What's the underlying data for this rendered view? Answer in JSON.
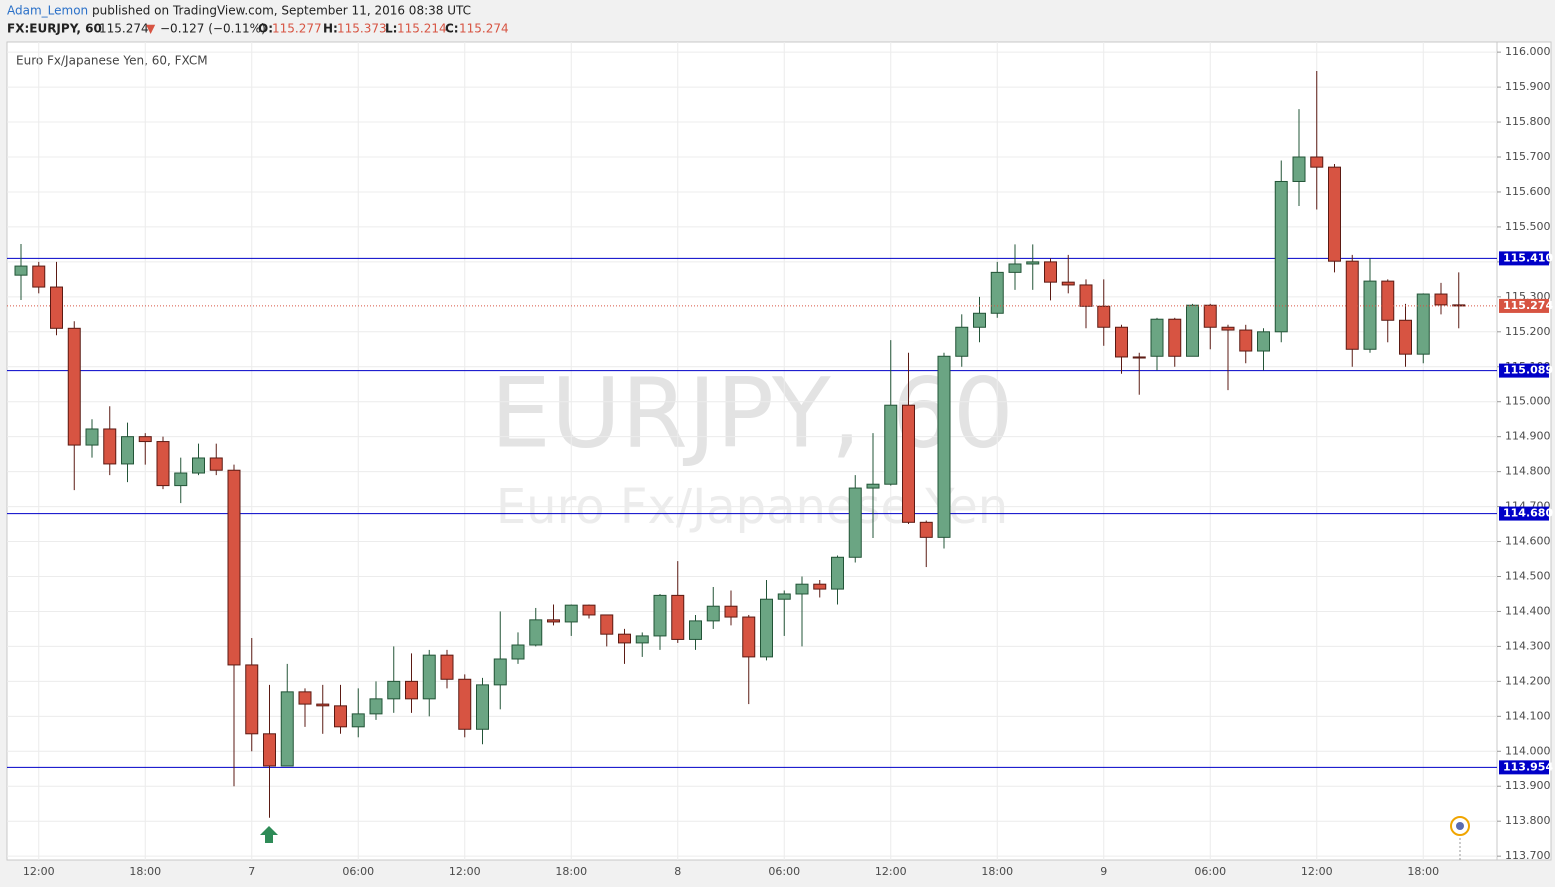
{
  "header": {
    "author": "Adam_Lemon",
    "published": "published on TradingView.com, September 11, 2016 08:38 UTC",
    "symbol": "FX:EURJPY, 60",
    "price": "115.274",
    "arrow": "▼",
    "change": "−0.127 (−0.11%)",
    "o_label": "O:",
    "o": "115.277",
    "h_label": "H:",
    "h": "115.373",
    "l_label": "L:",
    "l": "115.214",
    "c_label": "C:",
    "c": "115.274"
  },
  "chart_data": {
    "type": "candlestick",
    "title": "Euro Fx/Japanese Yen, 60, FXCM",
    "watermark": "EURJPY, 60",
    "watermark_sub": "Euro Fx/Japanese Yen",
    "categories": [
      null,
      "12:00",
      null,
      null,
      null,
      null,
      null,
      "18:00",
      null,
      null,
      null,
      null,
      null,
      "7",
      null,
      null,
      null,
      null,
      null,
      "06:00",
      null,
      null,
      null,
      null,
      null,
      "12:00",
      null,
      null,
      null,
      null,
      null,
      "18:00",
      null,
      null,
      null,
      null,
      null,
      "8",
      null,
      null,
      null,
      null,
      null,
      "06:00",
      null,
      null,
      null,
      null,
      null,
      "12:00",
      null,
      null,
      null,
      null,
      null,
      "18:00",
      null,
      null,
      null,
      null,
      null,
      "9",
      null,
      null,
      null,
      null,
      null,
      "06:00",
      null,
      null,
      null,
      null,
      null,
      "12:00",
      null,
      null,
      null,
      null,
      null,
      "18:00",
      null,
      null
    ],
    "open": [
      115.362,
      115.388,
      115.328,
      115.21,
      114.876,
      114.922,
      114.822,
      114.9,
      114.886,
      114.76,
      114.796,
      114.839,
      114.804,
      114.247,
      114.05,
      113.958,
      114.17,
      114.135,
      114.13,
      114.07,
      114.107,
      114.15,
      114.2,
      114.15,
      114.275,
      114.206,
      114.063,
      114.19,
      114.264,
      114.304,
      114.376,
      114.37,
      114.418,
      114.39,
      114.335,
      114.31,
      114.33,
      114.446,
      114.32,
      114.373,
      114.415,
      114.384,
      114.27,
      114.435,
      114.45,
      114.478,
      114.464,
      114.555,
      114.753,
      114.764,
      114.99,
      114.655,
      114.612,
      115.13,
      115.213,
      115.253,
      115.37,
      115.394,
      115.4,
      115.342,
      115.334,
      115.273,
      115.213,
      115.128,
      115.13,
      115.236,
      115.13,
      115.276,
      115.213,
      115.205,
      115.145,
      115.2,
      115.63,
      115.7,
      115.671,
      115.402,
      115.15,
      115.345,
      115.233,
      115.136,
      115.308,
      115.277
    ],
    "high": [
      115.451,
      115.4,
      115.4,
      115.23,
      114.95,
      114.987,
      114.94,
      114.91,
      114.9,
      114.84,
      114.88,
      114.88,
      114.82,
      114.324,
      114.19,
      114.25,
      114.18,
      114.19,
      114.19,
      114.18,
      114.2,
      114.3,
      114.28,
      114.29,
      114.29,
      114.22,
      114.21,
      114.4,
      114.34,
      114.41,
      114.42,
      114.42,
      114.42,
      114.39,
      114.35,
      114.34,
      114.45,
      114.544,
      114.39,
      114.47,
      114.46,
      114.39,
      114.49,
      114.46,
      114.5,
      114.49,
      114.56,
      114.79,
      114.91,
      115.176,
      115.14,
      114.66,
      115.14,
      115.25,
      115.3,
      115.4,
      115.45,
      115.45,
      115.41,
      115.42,
      115.35,
      115.35,
      115.22,
      115.14,
      115.24,
      115.24,
      115.28,
      115.28,
      115.22,
      115.22,
      115.21,
      115.69,
      115.837,
      115.946,
      115.68,
      115.42,
      115.41,
      115.35,
      115.28,
      115.31,
      115.34,
      115.37
    ],
    "low": [
      115.291,
      115.31,
      115.19,
      114.747,
      114.84,
      114.79,
      114.77,
      114.82,
      114.75,
      114.71,
      114.79,
      114.79,
      113.9,
      114.0,
      113.81,
      113.958,
      114.07,
      114.05,
      114.05,
      114.04,
      114.09,
      114.11,
      114.11,
      114.1,
      114.18,
      114.04,
      114.02,
      114.12,
      114.25,
      114.3,
      114.36,
      114.33,
      114.38,
      114.3,
      114.25,
      114.27,
      114.29,
      114.31,
      114.29,
      114.35,
      114.36,
      114.135,
      114.26,
      114.33,
      114.3,
      114.44,
      114.42,
      114.54,
      114.61,
      114.76,
      114.65,
      114.527,
      114.58,
      115.1,
      115.17,
      115.24,
      115.32,
      115.32,
      115.29,
      115.31,
      115.21,
      115.16,
      115.08,
      115.02,
      115.09,
      115.1,
      115.13,
      115.15,
      115.033,
      115.11,
      115.09,
      115.17,
      115.56,
      115.55,
      115.37,
      115.1,
      115.14,
      115.17,
      115.1,
      115.11,
      115.25,
      115.21
    ],
    "close": [
      115.388,
      115.328,
      115.21,
      114.876,
      114.922,
      114.822,
      114.9,
      114.886,
      114.76,
      114.796,
      114.839,
      114.804,
      114.247,
      114.05,
      113.958,
      114.17,
      114.135,
      114.13,
      114.07,
      114.107,
      114.15,
      114.2,
      114.15,
      114.275,
      114.206,
      114.063,
      114.19,
      114.264,
      114.304,
      114.376,
      114.37,
      114.418,
      114.39,
      114.335,
      114.31,
      114.33,
      114.446,
      114.32,
      114.373,
      114.415,
      114.384,
      114.27,
      114.435,
      114.45,
      114.478,
      114.464,
      114.555,
      114.753,
      114.764,
      114.99,
      114.655,
      114.612,
      115.13,
      115.213,
      115.253,
      115.37,
      115.394,
      115.4,
      115.342,
      115.334,
      115.273,
      115.213,
      115.128,
      115.125,
      115.236,
      115.13,
      115.276,
      115.213,
      115.205,
      115.145,
      115.2,
      115.63,
      115.7,
      115.671,
      115.402,
      115.15,
      115.345,
      115.233,
      115.136,
      115.308,
      115.277,
      115.274
    ],
    "up_color": "#6ba583",
    "down_color": "#d75442",
    "level_color": "#0000c8",
    "levels": [
      {
        "value": 115.41,
        "label": "115.410"
      },
      {
        "value": 115.089,
        "label": "115.089"
      },
      {
        "value": 114.68,
        "label": "114.680"
      },
      {
        "value": 113.954,
        "label": "113.954"
      }
    ],
    "last_price": 115.274,
    "ylim": [
      113.689,
      116.029
    ],
    "yticks": [
      {
        "value": 113.7,
        "label": "113.700"
      },
      {
        "value": 113.8,
        "label": "113.800"
      },
      {
        "value": 113.9,
        "label": "113.900"
      },
      {
        "value": 114.0,
        "label": "114.000"
      },
      {
        "value": 114.1,
        "label": "114.100"
      },
      {
        "value": 114.2,
        "label": "114.200"
      },
      {
        "value": 114.3,
        "label": "114.300"
      },
      {
        "value": 114.4,
        "label": "114.400"
      },
      {
        "value": 114.5,
        "label": "114.500"
      },
      {
        "value": 114.6,
        "label": "114.600"
      },
      {
        "value": 114.7,
        "label": "114.700"
      },
      {
        "value": 114.8,
        "label": "114.800"
      },
      {
        "value": 114.9,
        "label": "114.900"
      },
      {
        "value": 115.0,
        "label": "115.000"
      },
      {
        "value": 115.1,
        "label": "115.100"
      },
      {
        "value": 115.2,
        "label": "115.200"
      },
      {
        "value": 115.3,
        "label": "115.300"
      },
      {
        "value": 115.4,
        "label": "115.400"
      },
      {
        "value": 115.5,
        "label": "115.500"
      },
      {
        "value": 115.6,
        "label": "115.600"
      },
      {
        "value": 115.7,
        "label": "115.700"
      },
      {
        "value": 115.8,
        "label": "115.800"
      },
      {
        "value": 115.9,
        "label": "115.900"
      },
      {
        "value": 116.0,
        "label": "116.000"
      }
    ],
    "grid": true
  }
}
